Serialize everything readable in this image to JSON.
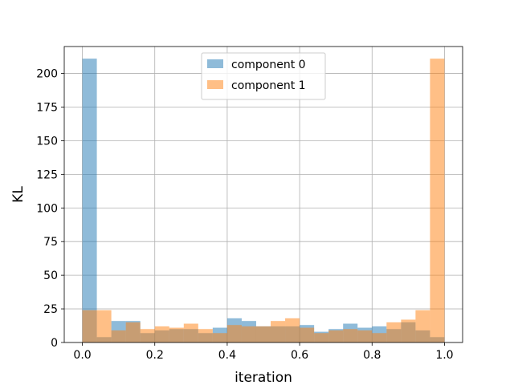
{
  "chart_data": {
    "type": "bar",
    "subtype": "histogram",
    "title": "",
    "xlabel": "iteration",
    "ylabel": "KL",
    "xlim": [
      -0.05,
      1.05
    ],
    "ylim": [
      0,
      220
    ],
    "xticks": [
      0.0,
      0.2,
      0.4,
      0.6,
      0.8,
      1.0
    ],
    "xtick_labels": [
      "0.0",
      "0.2",
      "0.4",
      "0.6",
      "0.8",
      "1.0"
    ],
    "yticks": [
      0,
      25,
      50,
      75,
      100,
      125,
      150,
      175,
      200
    ],
    "ytick_labels": [
      "0",
      "25",
      "50",
      "75",
      "100",
      "125",
      "150",
      "175",
      "200"
    ],
    "grid": true,
    "legend_position": "top-center",
    "bin_edges": [
      0.0,
      0.04,
      0.08,
      0.12,
      0.16,
      0.2,
      0.24,
      0.28,
      0.32,
      0.36,
      0.4,
      0.44,
      0.48,
      0.52,
      0.56,
      0.6,
      0.64,
      0.68,
      0.72,
      0.76,
      0.8,
      0.84,
      0.88,
      0.92,
      0.96,
      1.0
    ],
    "series": [
      {
        "name": "component 0",
        "color": "#1f77b4",
        "alpha": 0.5,
        "values": [
          211,
          4,
          16,
          16,
          7,
          9,
          10,
          10,
          7,
          11,
          18,
          16,
          12,
          12,
          12,
          13,
          8,
          10,
          14,
          11,
          12,
          10,
          15,
          9,
          4
        ]
      },
      {
        "name": "component 1",
        "color": "#ff7f0e",
        "alpha": 0.5,
        "values": [
          24,
          24,
          9,
          15,
          10,
          12,
          11,
          14,
          10,
          7,
          13,
          12,
          12,
          16,
          18,
          11,
          7,
          9,
          10,
          9,
          7,
          15,
          17,
          24,
          211
        ]
      }
    ]
  }
}
